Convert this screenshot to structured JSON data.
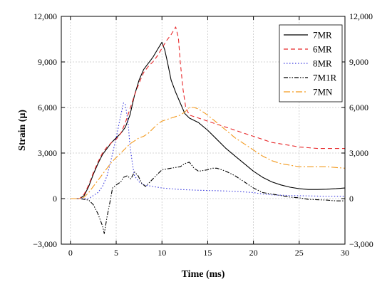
{
  "chart_data": {
    "type": "line",
    "xlabel": "Time (ms)",
    "ylabel": "Strain (μ)",
    "xlim": [
      -1,
      30
    ],
    "ylim": [
      -3000,
      12000
    ],
    "x_ticks": [
      0,
      5,
      10,
      15,
      20,
      25,
      30
    ],
    "x_tick_labels": [
      "0",
      "5",
      "10",
      "15",
      "20",
      "25",
      "30"
    ],
    "y_ticks": [
      -3000,
      0,
      3000,
      6000,
      9000,
      12000
    ],
    "y_tick_labels": [
      "−3,000",
      "0",
      "3,000",
      "6,000",
      "9,000",
      "12,000"
    ],
    "y_right_axis": true,
    "grid": true,
    "legend_position": "top-right",
    "series": [
      {
        "name": "7MR",
        "color": "#000000",
        "dash": "solid",
        "points": [
          [
            0,
            0
          ],
          [
            1,
            0
          ],
          [
            1.5,
            200
          ],
          [
            2,
            800
          ],
          [
            2.5,
            1600
          ],
          [
            3,
            2300
          ],
          [
            3.5,
            2900
          ],
          [
            4,
            3300
          ],
          [
            4.5,
            3700
          ],
          [
            5,
            4000
          ],
          [
            5.5,
            4300
          ],
          [
            6,
            4700
          ],
          [
            6.5,
            5500
          ],
          [
            7,
            6800
          ],
          [
            7.5,
            7800
          ],
          [
            8,
            8500
          ],
          [
            8.5,
            8900
          ],
          [
            9,
            9300
          ],
          [
            9.5,
            9800
          ],
          [
            10,
            10300
          ],
          [
            10.3,
            9800
          ],
          [
            10.6,
            9000
          ],
          [
            11,
            7800
          ],
          [
            11.5,
            7000
          ],
          [
            12,
            6300
          ],
          [
            12.5,
            5600
          ],
          [
            13,
            5300
          ],
          [
            14,
            5000
          ],
          [
            15,
            4500
          ],
          [
            16,
            3900
          ],
          [
            17,
            3300
          ],
          [
            18,
            2800
          ],
          [
            19,
            2300
          ],
          [
            20,
            1800
          ],
          [
            21,
            1400
          ],
          [
            22,
            1100
          ],
          [
            23,
            900
          ],
          [
            24,
            750
          ],
          [
            25,
            650
          ],
          [
            26,
            600
          ],
          [
            27,
            600
          ],
          [
            28,
            620
          ],
          [
            29,
            650
          ],
          [
            30,
            700
          ]
        ]
      },
      {
        "name": "6MR",
        "color": "#e8292b",
        "dash": "6,4",
        "points": [
          [
            0,
            0
          ],
          [
            1,
            0
          ],
          [
            1.5,
            300
          ],
          [
            2,
            900
          ],
          [
            2.5,
            1700
          ],
          [
            3,
            2400
          ],
          [
            3.5,
            3000
          ],
          [
            4,
            3400
          ],
          [
            4.5,
            3700
          ],
          [
            5,
            3900
          ],
          [
            5.5,
            4300
          ],
          [
            6,
            5000
          ],
          [
            6.5,
            5900
          ],
          [
            7,
            6800
          ],
          [
            7.5,
            7600
          ],
          [
            8,
            8300
          ],
          [
            8.5,
            8700
          ],
          [
            9,
            9000
          ],
          [
            9.5,
            9400
          ],
          [
            10,
            9900
          ],
          [
            10.5,
            10400
          ],
          [
            11,
            10800
          ],
          [
            11.5,
            11300
          ],
          [
            11.8,
            10600
          ],
          [
            12,
            9000
          ],
          [
            12.3,
            7200
          ],
          [
            12.6,
            6000
          ],
          [
            13,
            5500
          ],
          [
            14,
            5300
          ],
          [
            15,
            5100
          ],
          [
            16,
            4900
          ],
          [
            17,
            4700
          ],
          [
            18,
            4500
          ],
          [
            19,
            4300
          ],
          [
            20,
            4100
          ],
          [
            21,
            3900
          ],
          [
            22,
            3700
          ],
          [
            23,
            3600
          ],
          [
            24,
            3500
          ],
          [
            25,
            3400
          ],
          [
            26,
            3350
          ],
          [
            27,
            3300
          ],
          [
            28,
            3300
          ],
          [
            29,
            3300
          ],
          [
            30,
            3300
          ]
        ]
      },
      {
        "name": "8MR",
        "color": "#3a3adf",
        "dash": "1.5,2.5",
        "points": [
          [
            0,
            0
          ],
          [
            1,
            0
          ],
          [
            2,
            0
          ],
          [
            2.5,
            200
          ],
          [
            3,
            400
          ],
          [
            3.5,
            800
          ],
          [
            4,
            1500
          ],
          [
            4.5,
            2700
          ],
          [
            5,
            4000
          ],
          [
            5.5,
            5500
          ],
          [
            5.8,
            6300
          ],
          [
            6,
            6200
          ],
          [
            6.3,
            5000
          ],
          [
            6.5,
            3500
          ],
          [
            6.8,
            2200
          ],
          [
            7,
            1500
          ],
          [
            7.5,
            1100
          ],
          [
            8,
            900
          ],
          [
            9,
            800
          ],
          [
            10,
            700
          ],
          [
            12,
            600
          ],
          [
            14,
            550
          ],
          [
            16,
            520
          ],
          [
            18,
            480
          ],
          [
            20,
            400
          ],
          [
            21,
            300
          ],
          [
            22,
            250
          ],
          [
            24,
            200
          ],
          [
            26,
            180
          ],
          [
            28,
            150
          ],
          [
            30,
            150
          ]
        ]
      },
      {
        "name": "7M1R",
        "color": "#000000",
        "dash": "6,2,1.5,2,1.5,2",
        "points": [
          [
            0,
            0
          ],
          [
            1,
            0
          ],
          [
            1.5,
            -50
          ],
          [
            2,
            -100
          ],
          [
            2.5,
            -400
          ],
          [
            3,
            -1000
          ],
          [
            3.5,
            -1800
          ],
          [
            3.7,
            -2300
          ],
          [
            4,
            -1200
          ],
          [
            4.3,
            -300
          ],
          [
            4.6,
            700
          ],
          [
            5,
            900
          ],
          [
            5.5,
            1100
          ],
          [
            5.8,
            1400
          ],
          [
            6.2,
            1500
          ],
          [
            6.6,
            1300
          ],
          [
            7,
            1750
          ],
          [
            7.4,
            1500
          ],
          [
            7.8,
            1000
          ],
          [
            8.2,
            800
          ],
          [
            8.7,
            1100
          ],
          [
            9.5,
            1600
          ],
          [
            10,
            1900
          ],
          [
            11,
            2000
          ],
          [
            12,
            2100
          ],
          [
            12.5,
            2300
          ],
          [
            13,
            2400
          ],
          [
            13.5,
            2000
          ],
          [
            14,
            1800
          ],
          [
            15,
            1900
          ],
          [
            15.5,
            2000
          ],
          [
            16,
            2000
          ],
          [
            17,
            1800
          ],
          [
            18,
            1500
          ],
          [
            19,
            1100
          ],
          [
            20,
            700
          ],
          [
            21,
            400
          ],
          [
            22,
            300
          ],
          [
            23,
            200
          ],
          [
            24,
            100
          ],
          [
            25,
            50
          ],
          [
            26,
            -50
          ],
          [
            28,
            -100
          ],
          [
            29,
            -150
          ],
          [
            30,
            -150
          ]
        ]
      },
      {
        "name": "7MN",
        "color": "#f39a1f",
        "dash": "9,3,2,3",
        "points": [
          [
            0,
            0
          ],
          [
            1,
            0
          ],
          [
            1.5,
            100
          ],
          [
            2,
            400
          ],
          [
            2.5,
            800
          ],
          [
            3,
            1200
          ],
          [
            3.5,
            1600
          ],
          [
            4,
            2000
          ],
          [
            4.5,
            2400
          ],
          [
            5,
            2700
          ],
          [
            5.5,
            3000
          ],
          [
            6,
            3300
          ],
          [
            6.5,
            3600
          ],
          [
            7,
            3800
          ],
          [
            7.5,
            4000
          ],
          [
            8,
            4100
          ],
          [
            8.5,
            4300
          ],
          [
            9,
            4600
          ],
          [
            9.5,
            4900
          ],
          [
            10,
            5100
          ],
          [
            10.5,
            5200
          ],
          [
            11,
            5300
          ],
          [
            11.5,
            5400
          ],
          [
            12,
            5500
          ],
          [
            12.5,
            5700
          ],
          [
            13,
            6000
          ],
          [
            13.5,
            6000
          ],
          [
            14,
            5900
          ],
          [
            15,
            5500
          ],
          [
            16,
            5000
          ],
          [
            17,
            4500
          ],
          [
            18,
            4000
          ],
          [
            19,
            3600
          ],
          [
            20,
            3200
          ],
          [
            21,
            2800
          ],
          [
            22,
            2500
          ],
          [
            23,
            2300
          ],
          [
            24,
            2200
          ],
          [
            25,
            2100
          ],
          [
            26,
            2100
          ],
          [
            27,
            2100
          ],
          [
            28,
            2100
          ],
          [
            29,
            2050
          ],
          [
            30,
            2000
          ]
        ]
      }
    ]
  }
}
